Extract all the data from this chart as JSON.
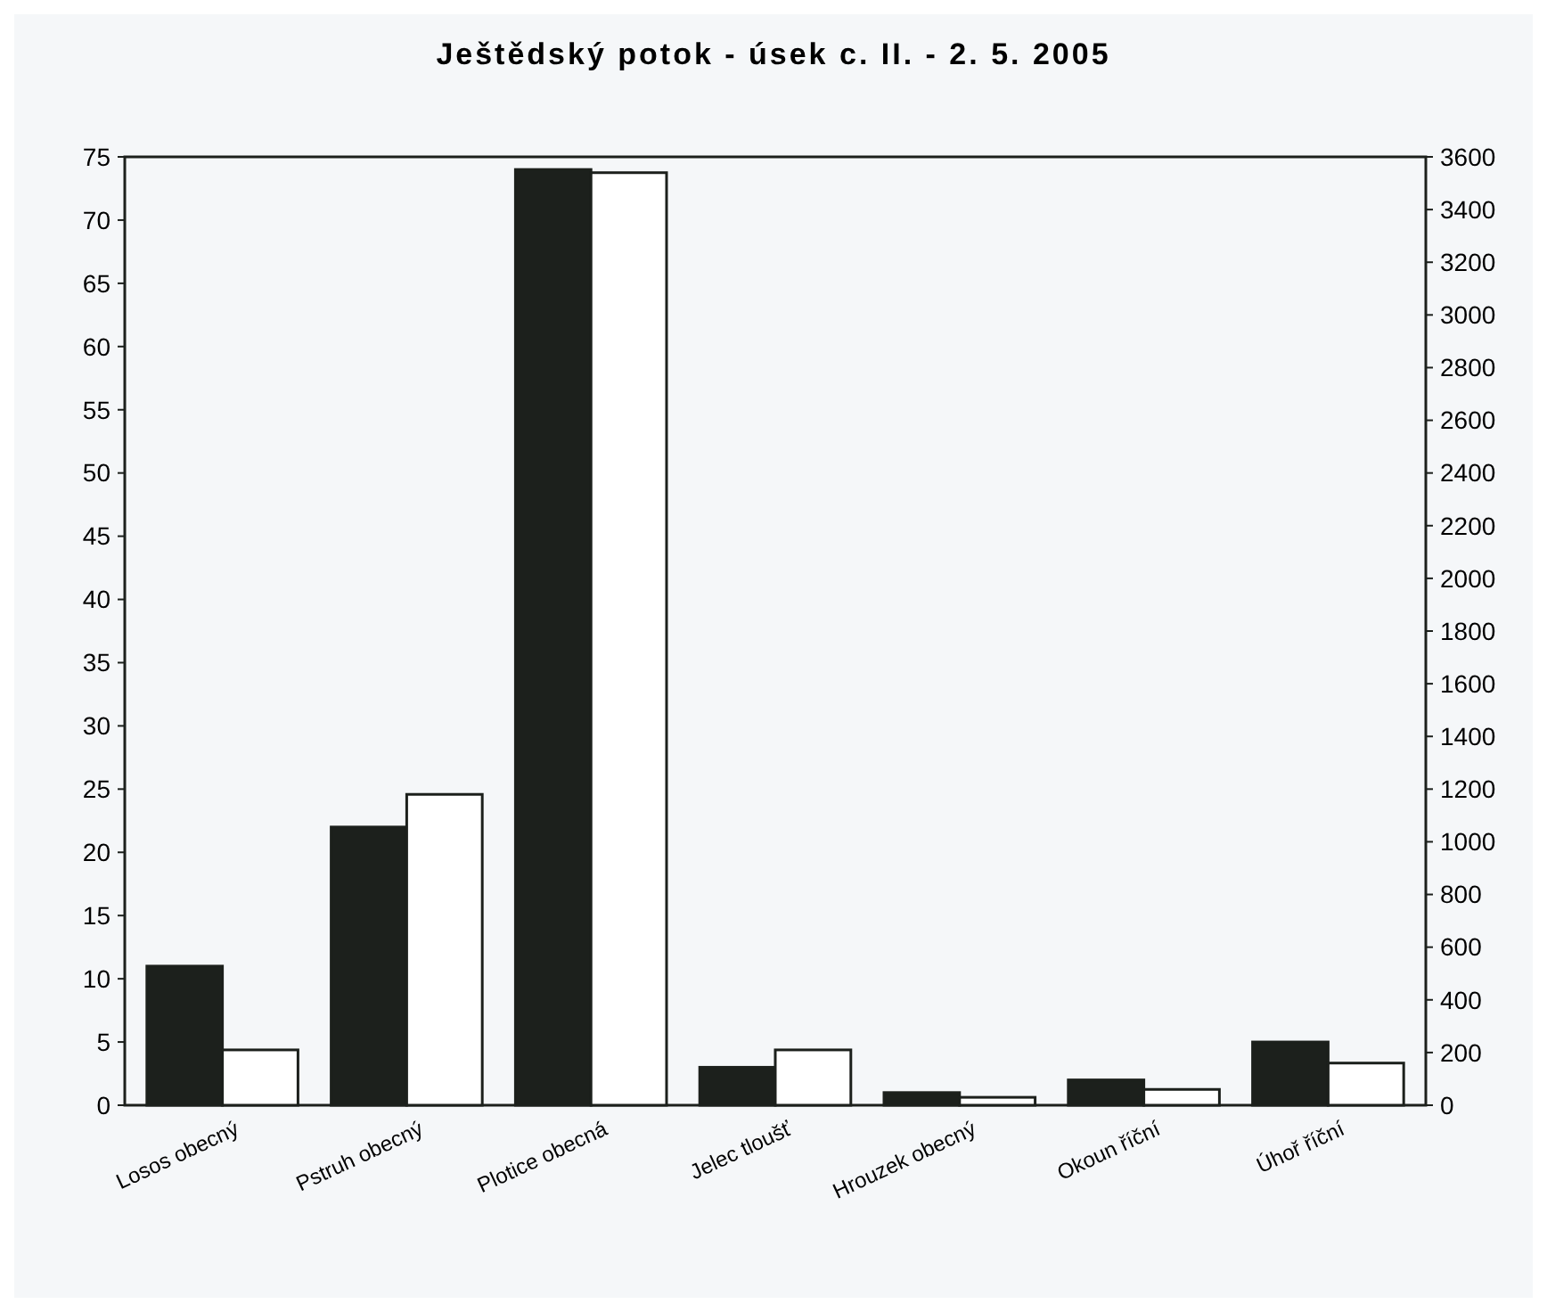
{
  "chart_data": {
    "type": "bar",
    "title": "Ještědský potok - úsek c. II. -  2. 5. 2005",
    "categories": [
      "Losos obecný",
      "Pstruh obecný",
      "Plotice obecná",
      "Jelec tloušť",
      "Hrouzek obecný",
      "Okoun říční",
      "Úhoř říční"
    ],
    "series": [
      {
        "color": "#1c201c",
        "values": [
          11,
          22,
          74,
          3,
          1,
          2,
          5
        ]
      },
      {
        "color": "#ffffff",
        "axis": "y2",
        "values": [
          210,
          1180,
          3540,
          210,
          30,
          60,
          160
        ]
      }
    ],
    "ylim": [
      0,
      75
    ],
    "yticks": [
      0,
      5,
      10,
      15,
      20,
      25,
      30,
      35,
      40,
      45,
      50,
      55,
      60,
      65,
      70,
      75
    ],
    "y2lim": [
      0,
      3600
    ],
    "y2ticks": [
      0,
      200,
      400,
      600,
      800,
      1000,
      1200,
      1400,
      1600,
      1800,
      2000,
      2200,
      2400,
      2600,
      2800,
      3000,
      3200,
      3400,
      3600
    ],
    "grid": false
  }
}
